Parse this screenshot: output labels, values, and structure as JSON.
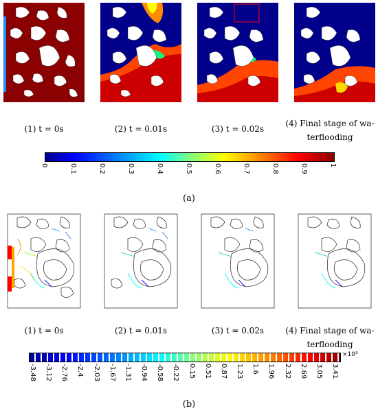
{
  "panel_a": {
    "captions": [
      "(1) t = 0s",
      "(2) t = 0.01s",
      "(3) t = 0.02s",
      "(4) Final stage of wa-",
      "terflooding"
    ],
    "colorbar_ticks": [
      "0",
      "0.1",
      "0.2",
      "0.3",
      "0.4",
      "0.5",
      "0.6",
      "0.7",
      "0.8",
      "0.9",
      "1"
    ],
    "label": "(a)",
    "colors": {
      "oil": "#8b0000",
      "water": "#00008b"
    }
  },
  "panel_b": {
    "captions": [
      "(1) t = 0s",
      "(2) t = 0.01s",
      "(3) t = 0.02s",
      "(4) Final stage of wa-",
      "terflooding"
    ],
    "colorbar_ticks": [
      "-3.48",
      "-3.12",
      "-2.76",
      "-2.4",
      "-2.03",
      "-1.67",
      "-1.31",
      "-0.94",
      "-0.58",
      "-0.22",
      "0.15",
      "0.51",
      "0.87",
      "1.23",
      "1.6",
      "1.96",
      "2.32",
      "2.69",
      "3.05",
      "3.41"
    ],
    "scale_note": "×10³",
    "label": "(b)"
  }
}
